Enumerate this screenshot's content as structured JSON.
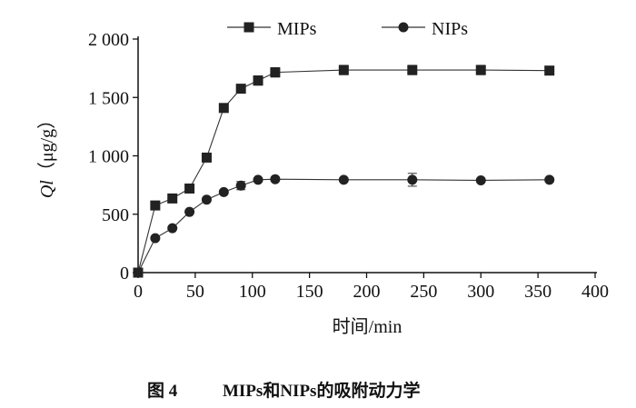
{
  "chart_data": {
    "type": "line",
    "xlabel": "时间/min",
    "ylabel_italic": "Ql",
    "ylabel_unit": "（μg/g）",
    "xlim": [
      0,
      400
    ],
    "ylim": [
      0,
      2000
    ],
    "xticks": [
      "0",
      "50",
      "100",
      "150",
      "200",
      "250",
      "300",
      "350",
      "400"
    ],
    "yticks": [
      "0",
      "500",
      "1 000",
      "1 500",
      "2 000"
    ],
    "grid": false,
    "legend_position": "top",
    "x": [
      0,
      15,
      30,
      45,
      60,
      75,
      90,
      105,
      120,
      180,
      240,
      300,
      360
    ],
    "series": [
      {
        "name": "MIPs",
        "marker": "square",
        "values": [
          0,
          575,
          635,
          720,
          985,
          1410,
          1575,
          1645,
          1715,
          1735,
          1735,
          1735,
          1730
        ],
        "error": [
          0,
          15,
          15,
          15,
          25,
          20,
          35,
          40,
          40,
          40,
          40,
          40,
          25
        ]
      },
      {
        "name": "NIPs",
        "marker": "circle",
        "values": [
          0,
          295,
          380,
          520,
          625,
          690,
          745,
          795,
          800,
          795,
          795,
          790,
          795
        ],
        "error": [
          0,
          10,
          10,
          10,
          10,
          15,
          35,
          15,
          15,
          15,
          55,
          15,
          15
        ]
      }
    ]
  },
  "caption": {
    "figure": "图 4",
    "title": "MIPs和NIPs的吸附动力学"
  }
}
